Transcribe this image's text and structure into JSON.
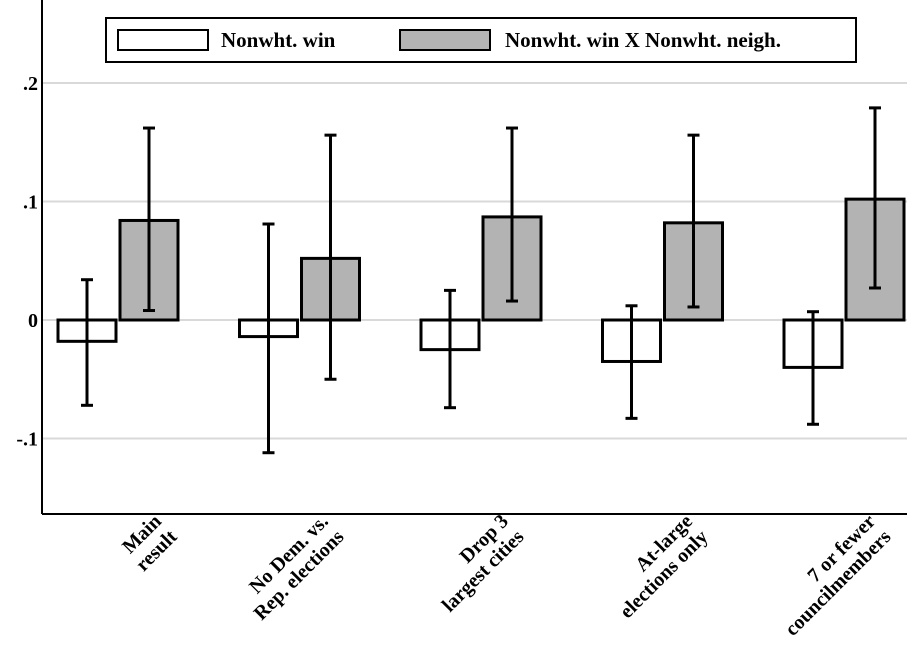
{
  "chart_data": {
    "type": "bar",
    "title": "",
    "xlabel": "",
    "ylabel": "",
    "ylim": [
      -0.165,
      0.27
    ],
    "yticks": [
      {
        "value": 0.2,
        "label": ".2"
      },
      {
        "value": 0.1,
        "label": ".1"
      },
      {
        "value": 0,
        "label": "0"
      },
      {
        "value": -0.1,
        "label": "-.1"
      }
    ],
    "grid": true,
    "legend_position": "top",
    "categories": [
      [
        "Main",
        "result"
      ],
      [
        "No Dem. vs.",
        "Rep. elections"
      ],
      [
        "Drop 3",
        "largest cities"
      ],
      [
        "At-large",
        "elections only"
      ],
      [
        "7 or fewer",
        "councilmembers"
      ]
    ],
    "series": [
      {
        "name": "Nonwht. win",
        "color": "#ffffff",
        "values": [
          -0.018,
          -0.014,
          -0.025,
          -0.035,
          -0.04
        ],
        "ci_low": [
          -0.072,
          -0.112,
          -0.074,
          -0.083,
          -0.088
        ],
        "ci_high": [
          0.034,
          0.081,
          0.025,
          0.012,
          0.007
        ]
      },
      {
        "name": "Nonwht. win X Nonwht. neigh.",
        "color": "#b3b3b3",
        "values": [
          0.084,
          0.052,
          0.087,
          0.082,
          0.102
        ],
        "ci_low": [
          0.008,
          -0.05,
          0.016,
          0.011,
          0.027
        ],
        "ci_high": [
          0.162,
          0.156,
          0.162,
          0.156,
          0.179
        ]
      }
    ]
  }
}
